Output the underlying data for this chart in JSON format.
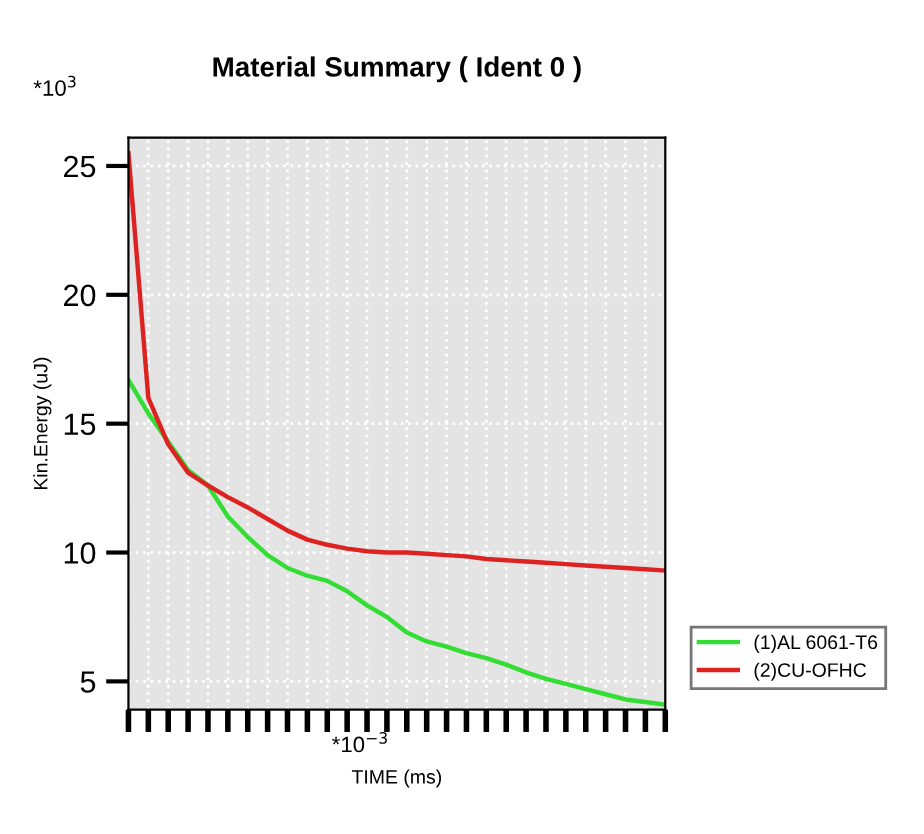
{
  "chart_data": {
    "type": "line",
    "title": "Material Summary ( Ident 0 )",
    "xlabel": "TIME (ms)",
    "ylabel": "Kin.Energy (uJ)",
    "annotations": [
      "*10$^{3}$",
      "*10$^{−3}$"
    ],
    "categories": [
      null,
      null,
      null,
      null,
      null,
      null,
      null,
      null,
      null,
      null,
      null,
      null,
      null,
      null,
      null,
      null,
      null,
      null,
      null,
      null,
      null,
      null,
      null,
      null,
      null,
      null,
      null,
      null
    ],
    "series": [
      {
        "name": "(1)AL 6061-T6",
        "color": "#33dd33",
        "values": [
          16.7,
          15.4,
          14.3,
          13.2,
          12.6,
          11.4,
          10.6,
          9.9,
          9.4,
          9.1,
          8.9,
          8.5,
          7.95,
          7.5,
          6.9,
          6.55,
          6.35,
          6.1,
          5.9,
          5.65,
          5.35,
          5.1,
          4.9,
          4.7,
          4.5,
          4.3,
          4.2,
          4.1
        ]
      },
      {
        "name": "(2)CU-OFHC",
        "color": "#dd2222",
        "values": [
          25.5,
          16.0,
          14.2,
          13.1,
          12.6,
          12.15,
          11.75,
          11.3,
          10.85,
          10.5,
          10.3,
          10.15,
          10.05,
          10.0,
          10.0,
          9.95,
          9.9,
          9.85,
          9.75,
          9.7,
          9.65,
          9.6,
          9.55,
          9.5,
          9.45,
          9.4,
          9.35,
          9.3
        ]
      }
    ],
    "ylim": [
      3.9,
      26.1
    ],
    "yticks": [
      5,
      10,
      15,
      20,
      25
    ],
    "grid": true,
    "legend": "bottom right",
    "marker": "none",
    "line_style": "solid"
  }
}
